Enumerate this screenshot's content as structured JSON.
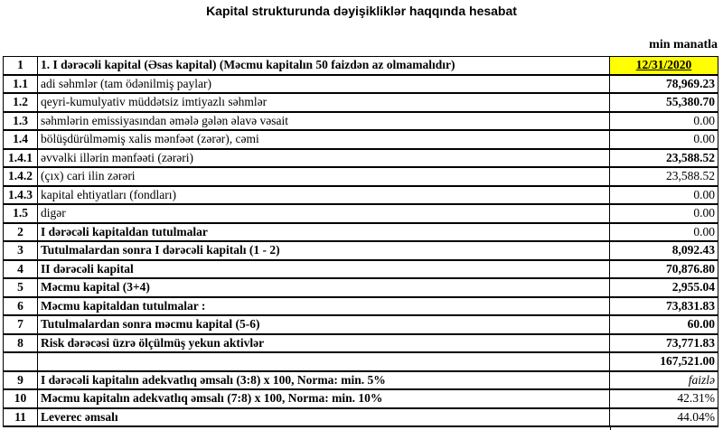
{
  "title": "Kapital strukturunda dəyişikliklər haqqında hesabat",
  "unit": "min manatla",
  "rows": [
    {
      "num": "1",
      "label": "1. I dərəcəli kapital (Əsas kapital) (Məcmu kapitalın 50 faizdən  az olmamalıdır)",
      "value": "12/31/2020"
    },
    {
      "num": "1.1",
      "label": "adi səhmlər (tam ödənilmiş paylar)",
      "value": "78,969.23"
    },
    {
      "num": "1.2",
      "label": "qeyri-kumulyativ müddətsiz imtiyazlı səhmlər",
      "value": "55,380.70"
    },
    {
      "num": "1.3",
      "label": "səhmlərin emissiyasından əmələ gələn  əlavə vəsait",
      "value": "0.00"
    },
    {
      "num": "1.4",
      "label": "bölüşdürülməmiş xalis mənfəət (zərər), cəmi",
      "value": "0.00"
    },
    {
      "num": "1.4.1",
      "label": "əvvəlki illərin mənfəəti (zərəri)",
      "value": "23,588.52"
    },
    {
      "num": "1.4.2",
      "label": "(çıx) cari ilin zərəri",
      "value": "23,588.52"
    },
    {
      "num": "1.4.3",
      "label": "kapital ehtiyatları (fondları)",
      "value": "0.00"
    },
    {
      "num": "1.5",
      "label": "digər",
      "value": "0.00"
    },
    {
      "num": "2",
      "label": "I dərəcəli kapitaldan  tutulmalar",
      "value": "0.00"
    },
    {
      "num": "3",
      "label": "Tutulmalardan  sonra I dərəcəli kapitalı (1 - 2)",
      "value": "8,092.43"
    },
    {
      "num": "4",
      "label": "II dərəcəli  kapital",
      "value": "70,876.80"
    },
    {
      "num": "5",
      "label": "Məcmu kapital (3+4)",
      "value": "2,955.04"
    },
    {
      "num": "6",
      "label": "Məcmu kapitaldan tutulmalar :",
      "value": "73,831.83"
    },
    {
      "num": "7",
      "label": "Tutulmalardan sonra məcmu kapital (5-6)",
      "value": "60.00"
    },
    {
      "num": "8",
      "label": "Risk dərəcəsi üzrə ölçülmüş  yekun aktivlər",
      "value": "73,771.83"
    },
    {
      "num": "",
      "label": "",
      "value": "167,521.00"
    },
    {
      "num": "9",
      "label": "I dərəcəli  kapitalın  adekvatlıq əmsalı (3:8) x 100, Norma: min. 5%",
      "value": "faizlə"
    },
    {
      "num": "10",
      "label": "Məcmu kapitalın  adekvatlıq  əmsalı (7:8) x 100, Norma: min. 10%",
      "value": "42.31%"
    },
    {
      "num": "11",
      "label": "Leverec əmsalı",
      "value": "44.04%"
    }
  ],
  "header_highlight_color": "#ffff00"
}
